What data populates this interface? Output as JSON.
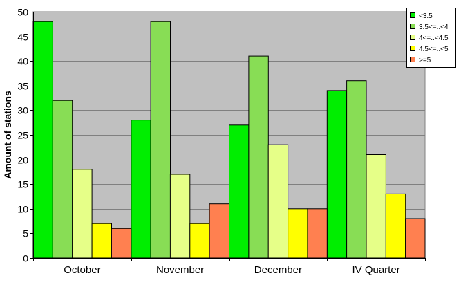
{
  "chart_data": {
    "type": "bar",
    "title": "",
    "xlabel": "",
    "ylabel": "Amount of stations",
    "ylim": [
      0,
      50
    ],
    "yticks": [
      0,
      5,
      10,
      15,
      20,
      25,
      30,
      35,
      40,
      45,
      50
    ],
    "grid": true,
    "legend_position": "top-right",
    "background_color": "#c0c0c0",
    "categories": [
      "October",
      "November",
      "December",
      "IV Quarter"
    ],
    "series": [
      {
        "name": "<3.5",
        "color": "#00ee00",
        "values": [
          48,
          28,
          27,
          34
        ]
      },
      {
        "name": "3.5<=..<4",
        "color": "#88dd55",
        "values": [
          32,
          48,
          41,
          36
        ]
      },
      {
        "name": "4<=..<4.5",
        "color": "#e6ff88",
        "values": [
          18,
          17,
          23,
          21
        ]
      },
      {
        "name": "4.5<=..<5",
        "color": "#ffff00",
        "values": [
          7,
          7,
          10,
          13
        ]
      },
      {
        "name": ">=5",
        "color": "#ff8050",
        "values": [
          6,
          11,
          10,
          8
        ]
      }
    ]
  }
}
